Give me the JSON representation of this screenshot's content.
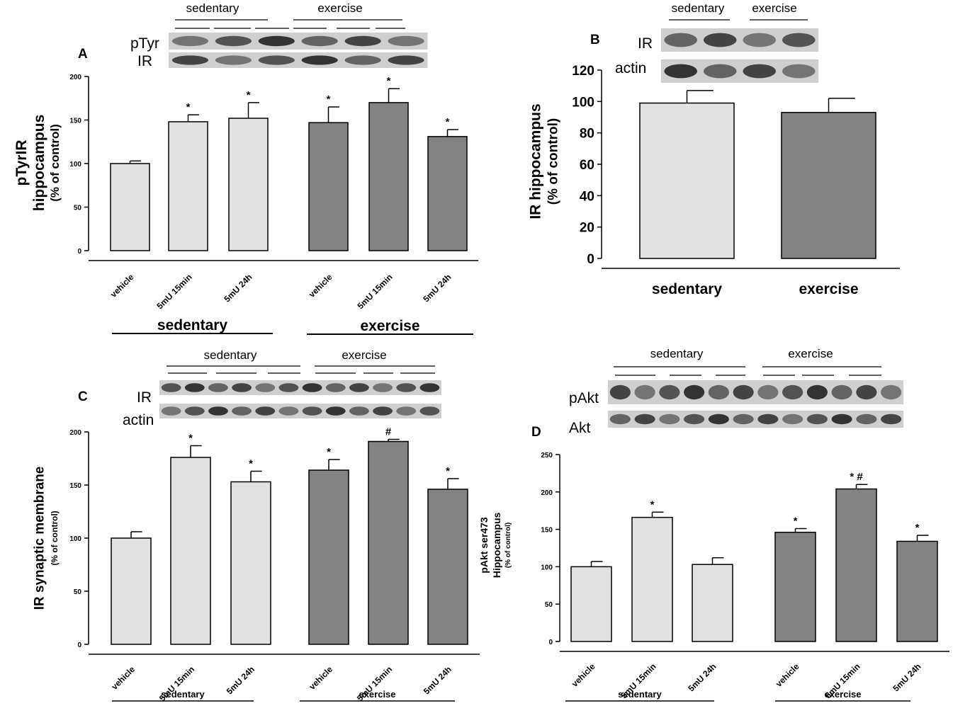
{
  "colors": {
    "sedentary": "#e2e2e2",
    "exercise": "#838383",
    "axis": "#000000",
    "blot_bg": "#cfcfcf",
    "band": "#2a2a2a"
  },
  "chart_data": [
    {
      "panel": "A",
      "type": "bar",
      "categories": [
        "vehicle",
        "5mU 15min",
        "5mU 24h",
        "vehicle",
        "5mU 15min",
        "5mU 24h"
      ],
      "groups": [
        "sedentary",
        "sedentary",
        "sedentary",
        "exercise",
        "exercise",
        "exercise"
      ],
      "values": [
        100,
        148,
        152,
        147,
        170,
        131
      ],
      "errors": [
        3,
        8,
        18,
        18,
        16,
        8
      ],
      "sig": [
        "",
        "*",
        "*",
        "*",
        "*",
        "*"
      ],
      "ylabel": [
        "pTyrIR",
        "hippocampus",
        "(% of control)"
      ],
      "ylim": [
        0,
        200
      ],
      "yticks": [
        "0",
        "50",
        "100",
        "150",
        "200"
      ],
      "group_labels": [
        "sedentary",
        "exercise"
      ],
      "blot_labels": [
        "pTyr",
        "IR"
      ],
      "blot_headers": [
        "sedentary",
        "exercise"
      ]
    },
    {
      "panel": "B",
      "type": "bar",
      "categories": [
        "sedentary",
        "exercise"
      ],
      "groups": [
        "sedentary",
        "exercise"
      ],
      "values": [
        99,
        93
      ],
      "errors": [
        8,
        9
      ],
      "sig": [
        "",
        ""
      ],
      "ylabel": [
        "IR hippocampus",
        "(% of control)"
      ],
      "ylim": [
        0,
        120
      ],
      "yticks": [
        "0",
        "20",
        "40",
        "60",
        "80",
        "100",
        "120"
      ],
      "blot_labels": [
        "IR",
        "actin"
      ],
      "blot_headers": [
        "sedentary",
        "exercise"
      ]
    },
    {
      "panel": "C",
      "type": "bar",
      "categories": [
        "vehicle",
        "5mU 15min",
        "5mU 24h",
        "vehicle",
        "5mU 15min",
        "5mU 24h"
      ],
      "groups": [
        "sedentary",
        "sedentary",
        "sedentary",
        "exercise",
        "exercise",
        "exercise"
      ],
      "values": [
        100,
        176,
        153,
        164,
        191,
        146
      ],
      "errors": [
        6,
        11,
        10,
        10,
        2,
        10
      ],
      "sig": [
        "",
        "*",
        "*",
        "*",
        "#",
        "*"
      ],
      "ylabel": [
        "IR synaptic membrane",
        "(% of control)"
      ],
      "ylim": [
        0,
        200
      ],
      "yticks": [
        "0",
        "50",
        "100",
        "150",
        "200"
      ],
      "group_labels": [
        "sedentary",
        "exercise"
      ],
      "blot_labels": [
        "IR",
        "actin"
      ],
      "blot_headers": [
        "sedentary",
        "exercise"
      ]
    },
    {
      "panel": "D",
      "type": "bar",
      "categories": [
        "vehicle",
        "5mU 15min",
        "5mU 24h",
        "vehicle",
        "5mU 15min",
        "5mU 24h"
      ],
      "groups": [
        "sedentary",
        "sedentary",
        "sedentary",
        "exercise",
        "exercise",
        "exercise"
      ],
      "values": [
        100,
        166,
        103,
        146,
        204,
        134
      ],
      "errors": [
        7,
        7,
        9,
        5,
        6,
        8
      ],
      "sig": [
        "",
        "*",
        "",
        "*",
        "* #",
        "*"
      ],
      "ylabel": [
        "pAkt ser473",
        "Hippocampus",
        "(% of control)"
      ],
      "ylim": [
        0,
        250
      ],
      "yticks": [
        "0",
        "50",
        "100",
        "150",
        "200",
        "250"
      ],
      "group_labels": [
        "sedentary",
        "exercise"
      ],
      "blot_labels": [
        "pAkt",
        "Akt"
      ],
      "blot_headers": [
        "sedentary",
        "exercise"
      ]
    }
  ]
}
